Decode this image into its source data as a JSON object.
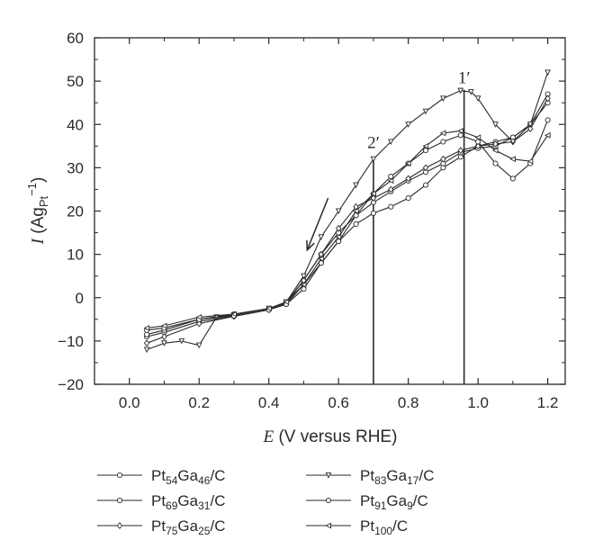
{
  "chart_data": {
    "type": "line",
    "xlabel": "E (V versus RHE)",
    "ylabel": "I (Ag_Pt^-1)",
    "xlim": [
      -0.1,
      1.25
    ],
    "ylim": [
      -20,
      60
    ],
    "xticks": [
      "0.0",
      "0.2",
      "0.4",
      "0.6",
      "0.8",
      "1.0",
      "1.2"
    ],
    "yticks": [
      "−20",
      "−10",
      "0",
      "10",
      "20",
      "30",
      "40",
      "50",
      "60"
    ],
    "grid": false,
    "legend_position": "bottom",
    "annotations": [
      {
        "text": "1′",
        "x": 0.96,
        "y": 49.5
      },
      {
        "text": "2′",
        "x": 0.7,
        "y": 34.5
      }
    ],
    "vlines": [
      0.7,
      0.96
    ],
    "arrow": {
      "from": [
        0.57,
        23
      ],
      "to": [
        0.51,
        11
      ],
      "description": "scan direction"
    },
    "series": [
      {
        "name": "Pt54Ga46/C",
        "marker": "circle",
        "x": [
          0.05,
          0.1,
          0.2,
          0.3,
          0.4,
          0.45,
          0.5,
          0.55,
          0.6,
          0.65,
          0.7,
          0.75,
          0.8,
          0.85,
          0.9,
          0.95,
          1.0,
          1.05,
          1.1,
          1.15,
          1.2
        ],
        "y": [
          -9,
          -8,
          -5.5,
          -4.3,
          -2.8,
          -1.5,
          3,
          8,
          13,
          17,
          19.5,
          21,
          23,
          26,
          30,
          32.5,
          35,
          36,
          37,
          40,
          47
        ]
      },
      {
        "name": "Pt69Ga31/C",
        "marker": "circle",
        "x": [
          0.05,
          0.1,
          0.2,
          0.3,
          0.4,
          0.45,
          0.5,
          0.55,
          0.6,
          0.65,
          0.7,
          0.75,
          0.8,
          0.85,
          0.9,
          0.95,
          1.0,
          1.05,
          1.1,
          1.15,
          1.2
        ],
        "y": [
          -8.5,
          -7.5,
          -5,
          -3.8,
          -2.5,
          -1,
          4,
          10,
          15,
          19,
          22,
          24.5,
          27,
          29,
          31,
          33.5,
          34.5,
          35,
          37,
          40,
          45
        ]
      },
      {
        "name": "Pt75Ga25/C",
        "marker": "diamond",
        "x": [
          0.05,
          0.1,
          0.2,
          0.3,
          0.4,
          0.45,
          0.5,
          0.55,
          0.6,
          0.65,
          0.7,
          0.75,
          0.8,
          0.85,
          0.9,
          0.95,
          1.0,
          1.05,
          1.1,
          1.15,
          1.2
        ],
        "y": [
          -10.5,
          -9,
          -6,
          -4.3,
          -2.8,
          -1.2,
          4,
          10,
          16,
          21,
          23,
          25,
          27.5,
          30,
          32,
          34,
          35,
          35.5,
          36,
          39,
          46
        ]
      },
      {
        "name": "Pt83Ga17/C",
        "marker": "triangle-down",
        "x": [
          0.05,
          0.1,
          0.15,
          0.2,
          0.25,
          0.3,
          0.4,
          0.45,
          0.5,
          0.55,
          0.6,
          0.65,
          0.7,
          0.75,
          0.8,
          0.85,
          0.9,
          0.95,
          0.98,
          1.0,
          1.05,
          1.1,
          1.15,
          1.2
        ],
        "y": [
          -12,
          -10.5,
          -10,
          -11,
          -4.5,
          -4,
          -2.5,
          -1,
          5,
          14,
          20,
          26,
          32,
          36,
          40,
          43,
          46,
          47.8,
          47.5,
          46,
          40,
          36,
          40,
          52
        ]
      },
      {
        "name": "Pt91Ga9/C",
        "marker": "circle",
        "x": [
          0.05,
          0.1,
          0.2,
          0.3,
          0.4,
          0.45,
          0.5,
          0.55,
          0.6,
          0.65,
          0.7,
          0.75,
          0.8,
          0.85,
          0.9,
          0.95,
          1.0,
          1.05,
          1.1,
          1.15,
          1.2
        ],
        "y": [
          -7.5,
          -7,
          -5,
          -4.2,
          -2.8,
          -1.5,
          2,
          8,
          13,
          19,
          24,
          28,
          31,
          34,
          36,
          37.5,
          36,
          31,
          27.5,
          31,
          41
        ]
      },
      {
        "name": "Pt100/C",
        "marker": "triangle-left",
        "x": [
          0.05,
          0.1,
          0.2,
          0.3,
          0.4,
          0.45,
          0.5,
          0.55,
          0.6,
          0.65,
          0.7,
          0.75,
          0.8,
          0.85,
          0.9,
          0.95,
          1.0,
          1.05,
          1.1,
          1.15,
          1.2
        ],
        "y": [
          -7,
          -6.5,
          -4.5,
          -3.8,
          -2.5,
          -1,
          3,
          9,
          14,
          20,
          24,
          27,
          31,
          35,
          38,
          38.5,
          37,
          34,
          32,
          31.5,
          37.5
        ]
      }
    ]
  },
  "legend": {
    "items": [
      {
        "base": "Pt",
        "sub1": "54",
        "mid": "Ga",
        "sub2": "46",
        "tail": "/C",
        "marker": "circle"
      },
      {
        "base": "Pt",
        "sub1": "69",
        "mid": "Ga",
        "sub2": "31",
        "tail": "/C",
        "marker": "circle"
      },
      {
        "base": "Pt",
        "sub1": "75",
        "mid": "Ga",
        "sub2": "25",
        "tail": "/C",
        "marker": "diamond"
      },
      {
        "base": "Pt",
        "sub1": "83",
        "mid": "Ga",
        "sub2": "17",
        "tail": "/C",
        "marker": "triangle-down"
      },
      {
        "base": "Pt",
        "sub1": "91",
        "mid": "Ga",
        "sub2": "9",
        "tail": "/C",
        "marker": "circle"
      },
      {
        "base": "Pt",
        "sub1": "100",
        "mid": "",
        "sub2": "",
        "tail": "/C",
        "marker": "triangle-left"
      }
    ]
  },
  "colors": {
    "ink": "#2a2a2a",
    "background": "#ffffff"
  }
}
